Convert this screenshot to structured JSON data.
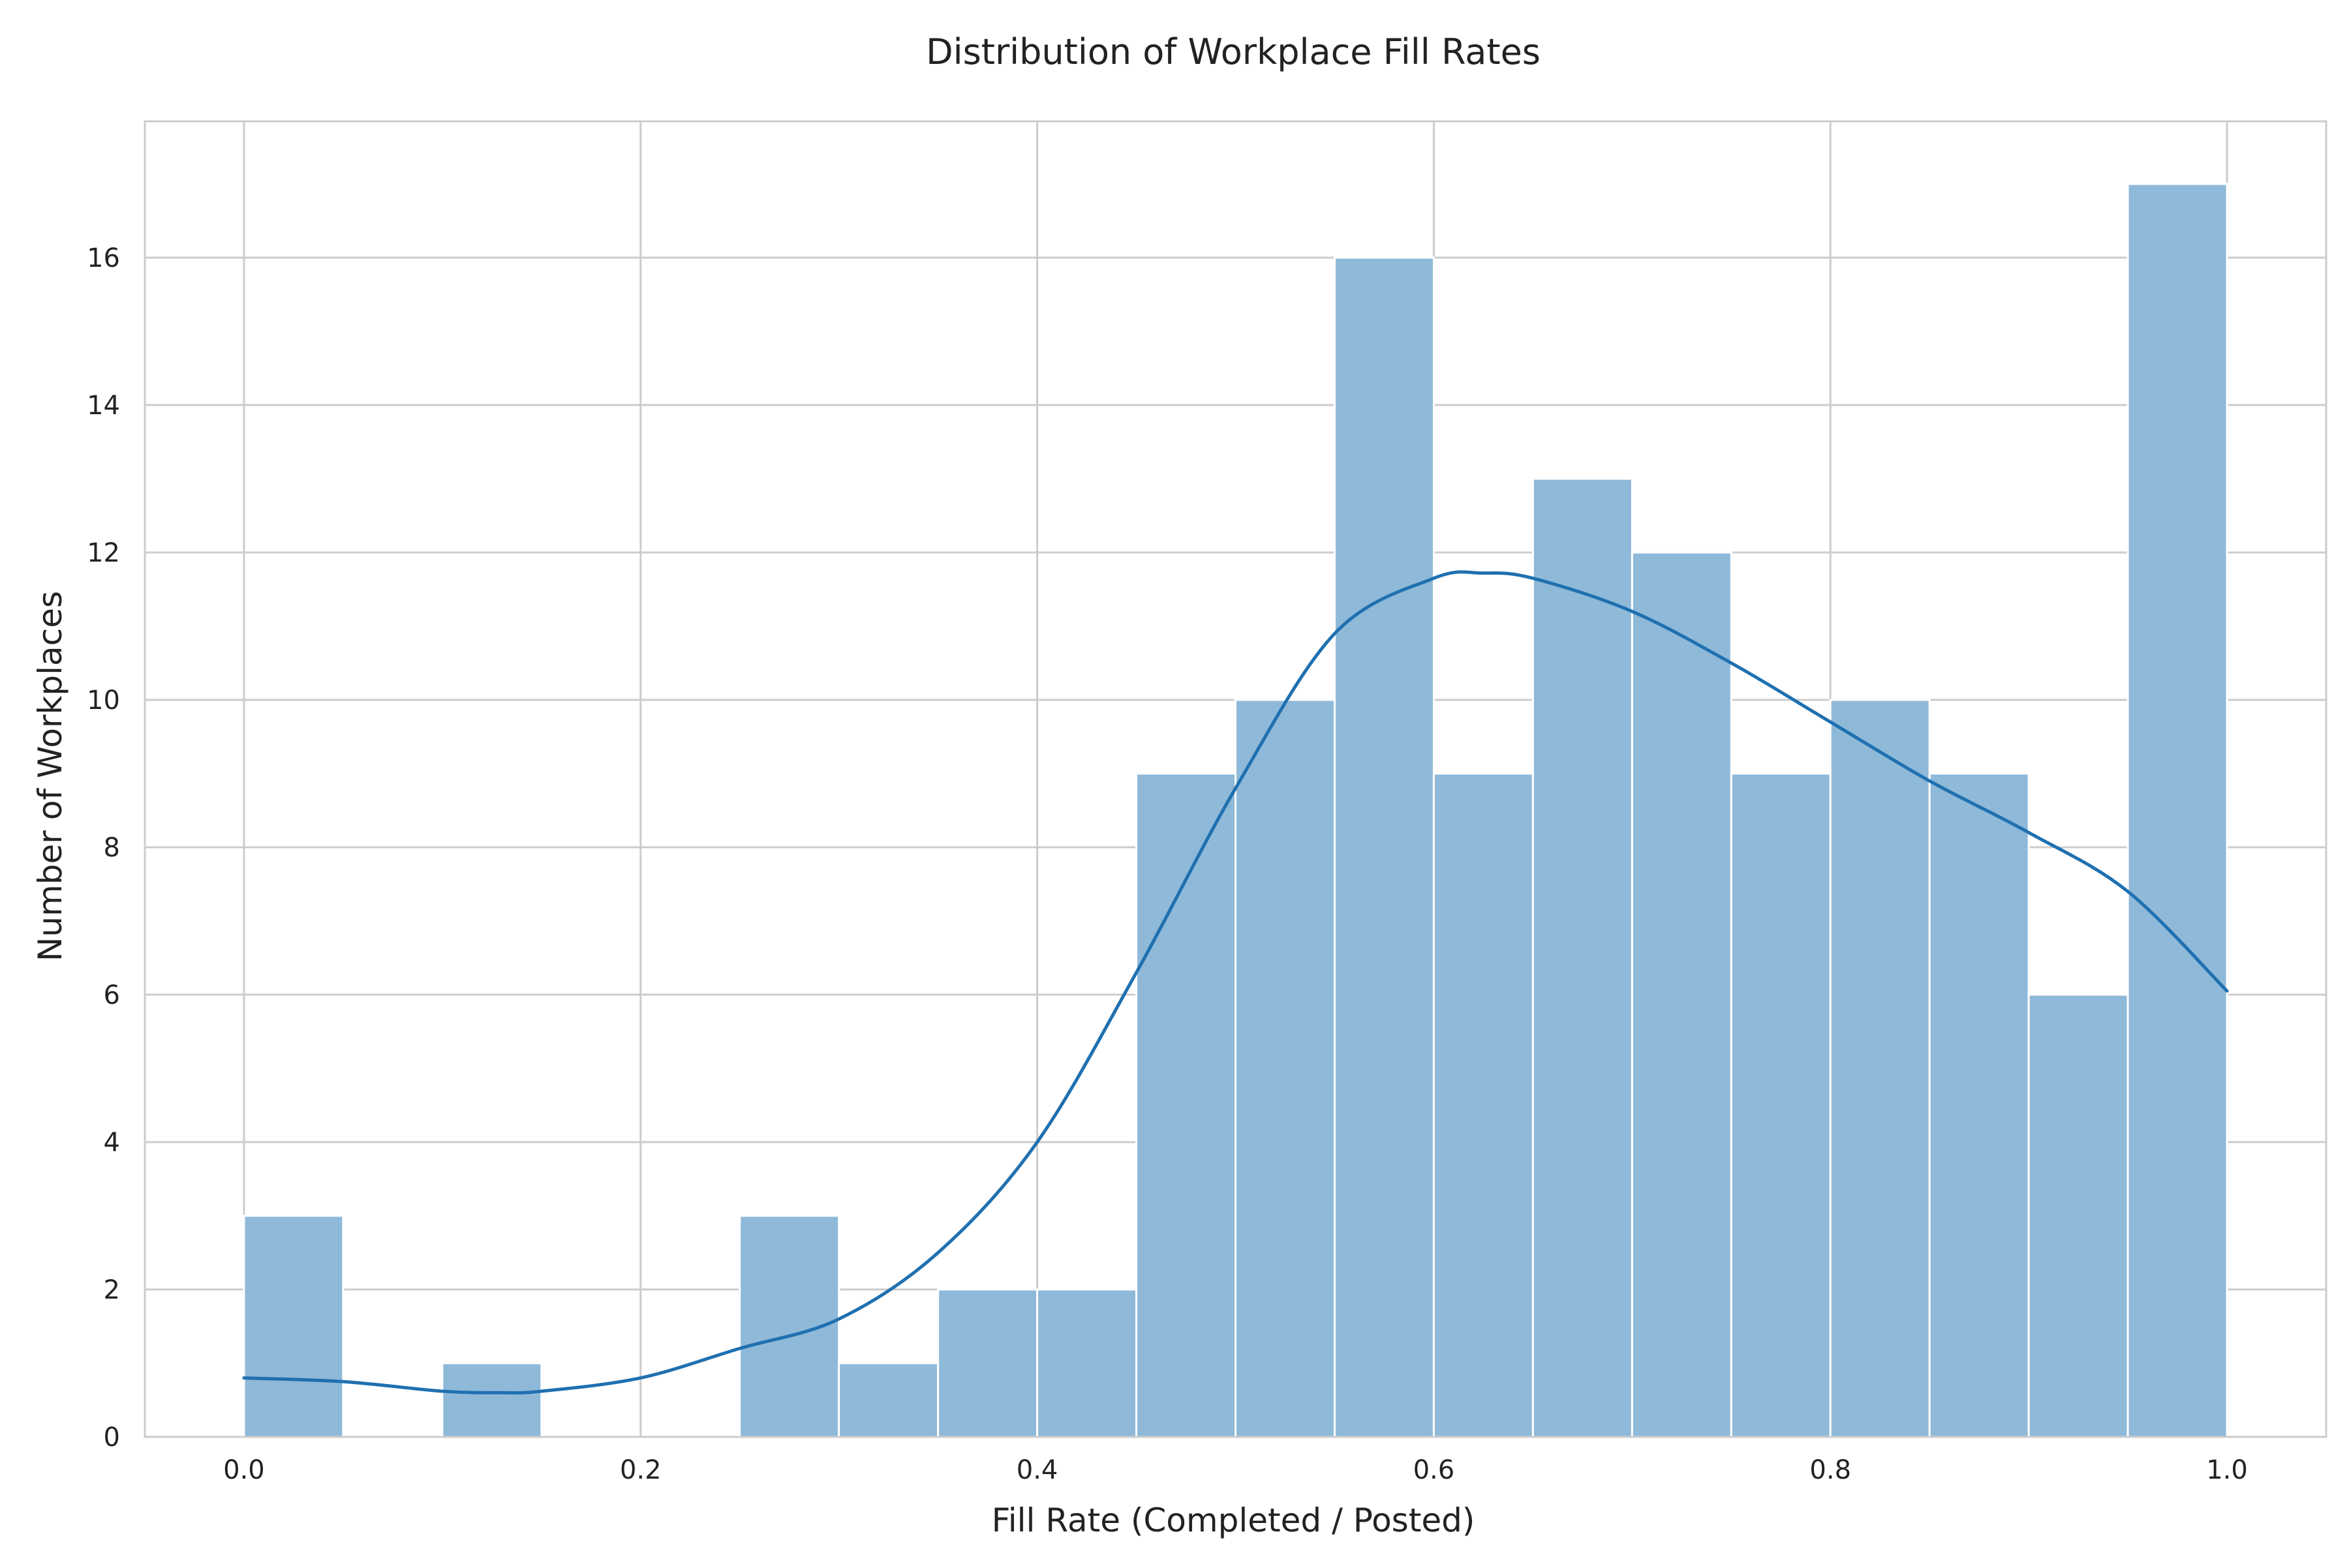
{
  "chart_data": {
    "type": "bar",
    "title": "Distribution of Workplace Fill Rates",
    "xlabel": "Fill Rate (Completed / Posted)",
    "ylabel": "Number of Workplaces",
    "xlim": [
      -0.05,
      1.05
    ],
    "ylim": [
      0,
      17.85
    ],
    "xticks": [
      0.0,
      0.2,
      0.4,
      0.6,
      0.8,
      1.0
    ],
    "xtick_labels": [
      "0.0",
      "0.2",
      "0.4",
      "0.6",
      "0.8",
      "1.0"
    ],
    "yticks": [
      0,
      2,
      4,
      6,
      8,
      10,
      12,
      14,
      16
    ],
    "ytick_labels": [
      "0",
      "2",
      "4",
      "6",
      "8",
      "10",
      "12",
      "14",
      "16"
    ],
    "grid": true,
    "bin_edges": [
      0.0,
      0.05,
      0.1,
      0.15,
      0.2,
      0.25,
      0.3,
      0.35,
      0.4,
      0.45,
      0.5,
      0.55,
      0.6,
      0.65,
      0.7,
      0.75,
      0.8,
      0.85,
      0.9,
      0.95,
      1.0
    ],
    "values": [
      3,
      0,
      1,
      0,
      0,
      3,
      1,
      2,
      2,
      9,
      10,
      16,
      9,
      13,
      12,
      9,
      10,
      9,
      6,
      17
    ],
    "kde": {
      "x": [
        0.0,
        0.05,
        0.1,
        0.13,
        0.15,
        0.2,
        0.25,
        0.3,
        0.35,
        0.4,
        0.45,
        0.5,
        0.55,
        0.6,
        0.625,
        0.65,
        0.7,
        0.75,
        0.8,
        0.85,
        0.9,
        0.95,
        1.0
      ],
      "y": [
        0.8,
        0.75,
        0.62,
        0.6,
        0.62,
        0.8,
        1.2,
        1.6,
        2.5,
        4.0,
        6.3,
        8.8,
        10.9,
        11.65,
        11.72,
        11.65,
        11.2,
        10.5,
        9.7,
        8.9,
        8.2,
        7.4,
        6.05
      ]
    },
    "colors": {
      "bar_fill": "#8fb9d9",
      "bar_edge": "#ffffff",
      "kde_line": "#1f70b0",
      "grid": "#cccccc",
      "frame": "#cccccc"
    }
  }
}
